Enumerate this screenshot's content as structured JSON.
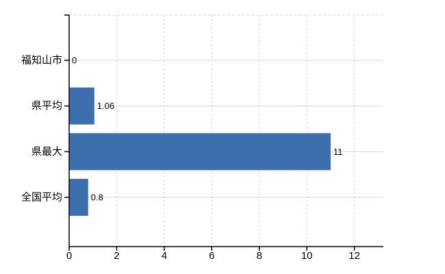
{
  "chart_data": {
    "type": "bar",
    "orientation": "horizontal",
    "title": "",
    "xlabel": "",
    "ylabel": "",
    "categories": [
      "福知山市",
      "県平均",
      "県最大",
      "全国平均"
    ],
    "values": [
      0,
      1.06,
      11,
      0.8
    ],
    "value_labels": [
      "0",
      "1.06",
      "11",
      "0.8"
    ],
    "xticks": [
      0,
      2,
      4,
      6,
      8,
      10,
      12
    ],
    "xtick_labels": [
      "0",
      "2",
      "4",
      "6",
      "8",
      "10",
      "12"
    ],
    "xlim": [
      0,
      13.22
    ],
    "grid": true,
    "legend": false,
    "bar_color": "#3d6eae",
    "axis_color": "#000000",
    "gridline_color": "#d6d6d6",
    "text_color": "#000000",
    "background_color": "#ffffff"
  }
}
